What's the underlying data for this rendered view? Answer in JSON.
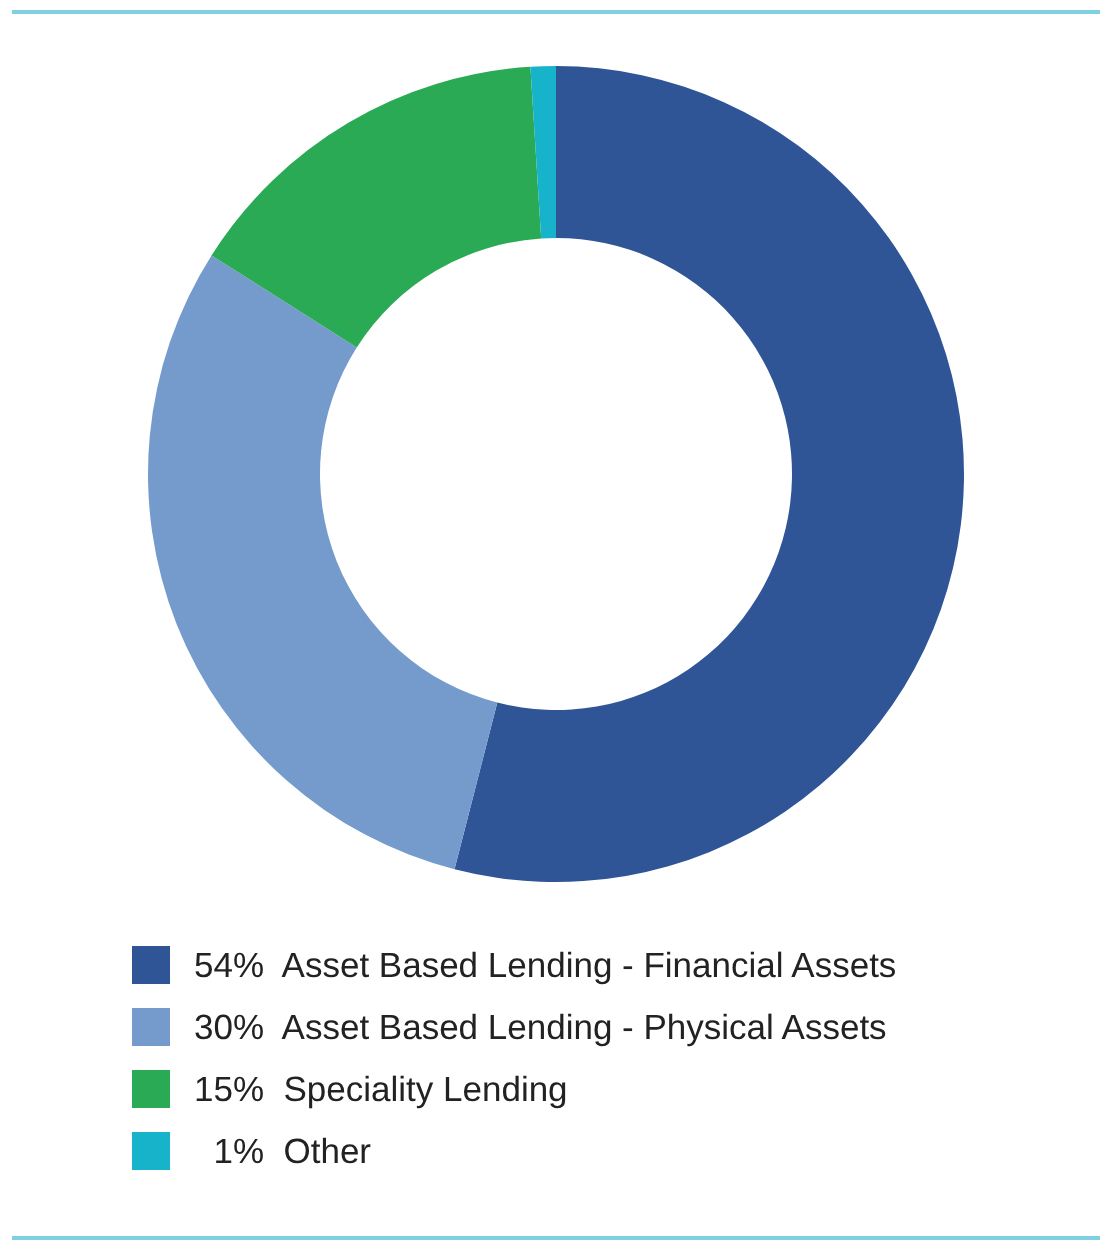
{
  "chart_data": {
    "type": "donut",
    "categories": [
      "Asset Based Lending - Financial Assets",
      "Asset Based Lending - Physical Assets",
      "Speciality Lending",
      "Other"
    ],
    "values": [
      54,
      30,
      15,
      1
    ],
    "value_labels": [
      "54%",
      "30%",
      "15%",
      "1%"
    ],
    "colors": [
      "#2f5597",
      "#759bcd",
      "#2aaa55",
      "#17b3cb"
    ],
    "legend": "bottom"
  }
}
